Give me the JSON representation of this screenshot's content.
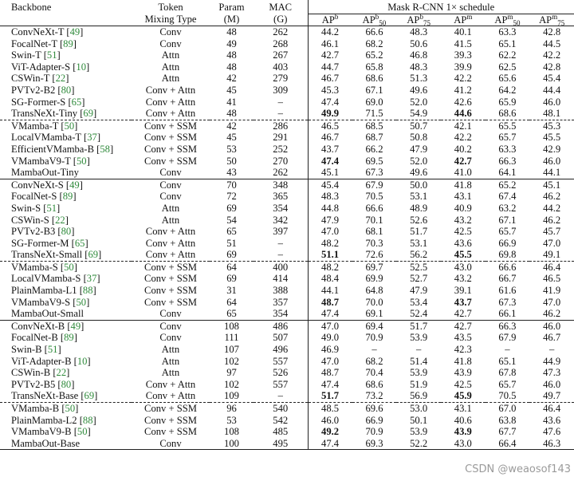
{
  "header": {
    "backbone": "Backbone",
    "token_mixing_line1": "Token",
    "token_mixing_line2": "Mixing Type",
    "param_line1": "Param",
    "param_line2": "(M)",
    "mac_line1": "MAC",
    "mac_line2": "(G)",
    "mask_title": "Mask R-CNN 1× schedule",
    "metrics": [
      {
        "base": "AP",
        "sup": "b",
        "sub": ""
      },
      {
        "base": "AP",
        "sup": "b",
        "sub": "50"
      },
      {
        "base": "AP",
        "sup": "b",
        "sub": "75"
      },
      {
        "base": "AP",
        "sup": "m",
        "sub": ""
      },
      {
        "base": "AP",
        "sup": "m",
        "sub": "50"
      },
      {
        "base": "AP",
        "sup": "m",
        "sub": "75"
      }
    ]
  },
  "rows": [
    {
      "name": "ConvNeXt-T",
      "cite": "49",
      "mix": "Conv",
      "param": "48",
      "mac": "262",
      "v": [
        "44.2",
        "66.6",
        "48.3",
        "40.1",
        "63.3",
        "42.8"
      ],
      "border": "none"
    },
    {
      "name": "FocalNet-T",
      "cite": "89",
      "mix": "Conv",
      "param": "49",
      "mac": "268",
      "v": [
        "46.1",
        "68.2",
        "50.6",
        "41.5",
        "65.1",
        "44.5"
      ],
      "border": "none"
    },
    {
      "name": "Swin-T",
      "cite": "51",
      "mix": "Attn",
      "param": "48",
      "mac": "267",
      "v": [
        "42.7",
        "65.2",
        "46.8",
        "39.3",
        "62.2",
        "42.2"
      ],
      "border": "none"
    },
    {
      "name": "ViT-Adapter-S",
      "cite": "10",
      "mix": "Attn",
      "param": "48",
      "mac": "403",
      "v": [
        "44.7",
        "65.8",
        "48.3",
        "39.9",
        "62.5",
        "42.8"
      ],
      "border": "none"
    },
    {
      "name": "CSWin-T",
      "cite": "22",
      "mix": "Attn",
      "param": "42",
      "mac": "279",
      "v": [
        "46.7",
        "68.6",
        "51.3",
        "42.2",
        "65.6",
        "45.4"
      ],
      "border": "none"
    },
    {
      "name": "PVTv2-B2",
      "cite": "80",
      "mix": "Conv + Attn",
      "param": "45",
      "mac": "309",
      "v": [
        "45.3",
        "67.1",
        "49.6",
        "41.2",
        "64.2",
        "44.4"
      ],
      "border": "none"
    },
    {
      "name": "SG-Former-S",
      "cite": "65",
      "mix": "Conv + Attn",
      "param": "41",
      "mac": "–",
      "v": [
        "47.4",
        "69.0",
        "52.0",
        "42.6",
        "65.9",
        "46.0"
      ],
      "border": "none"
    },
    {
      "name": "TransNeXt-Tiny",
      "cite": "69",
      "mix": "Conv + Attn",
      "param": "48",
      "mac": "–",
      "v": [
        "49.9",
        "71.5",
        "54.9",
        "44.6",
        "68.6",
        "48.1"
      ],
      "bold": [
        0,
        3
      ],
      "border": "none"
    },
    {
      "name": "VMamba-T",
      "cite": "50",
      "mix": "Conv + SSM",
      "param": "42",
      "mac": "286",
      "v": [
        "46.5",
        "68.5",
        "50.7",
        "42.1",
        "65.5",
        "45.3"
      ],
      "border": "dash"
    },
    {
      "name": "LocalVMamba-T",
      "cite": "37",
      "mix": "Conv + SSM",
      "param": "45",
      "mac": "291",
      "v": [
        "46.7",
        "68.7",
        "50.8",
        "42.2",
        "65.7",
        "45.5"
      ],
      "border": "none"
    },
    {
      "name": "EfficientVMamba-B",
      "cite": "58",
      "mix": "Conv + SSM",
      "param": "53",
      "mac": "252",
      "v": [
        "43.7",
        "66.2",
        "47.9",
        "40.2",
        "63.3",
        "42.9"
      ],
      "border": "none"
    },
    {
      "name": "VMambaV9-T",
      "cite": "50",
      "mix": "Conv + SSM",
      "param": "50",
      "mac": "270",
      "v": [
        "47.4",
        "69.5",
        "52.0",
        "42.7",
        "66.3",
        "46.0"
      ],
      "bold": [
        0,
        3
      ],
      "border": "none"
    },
    {
      "name": "MambaOut-Tiny",
      "cite": "",
      "mix": "Conv",
      "param": "43",
      "mac": "262",
      "v": [
        "45.1",
        "67.3",
        "49.6",
        "41.0",
        "64.1",
        "44.1"
      ],
      "border": "none"
    },
    {
      "name": "ConvNeXt-S",
      "cite": "49",
      "mix": "Conv",
      "param": "70",
      "mac": "348",
      "v": [
        "45.4",
        "67.9",
        "50.0",
        "41.8",
        "65.2",
        "45.1"
      ],
      "border": "solid"
    },
    {
      "name": "FocalNet-S",
      "cite": "89",
      "mix": "Conv",
      "param": "72",
      "mac": "365",
      "v": [
        "48.3",
        "70.5",
        "53.1",
        "43.1",
        "67.4",
        "46.2"
      ],
      "border": "none"
    },
    {
      "name": "Swin-S",
      "cite": "51",
      "mix": "Attn",
      "param": "69",
      "mac": "354",
      "v": [
        "44.8",
        "66.6",
        "48.9",
        "40.9",
        "63.2",
        "44.2"
      ],
      "border": "none"
    },
    {
      "name": "CSWin-S",
      "cite": "22",
      "mix": "Attn",
      "param": "54",
      "mac": "342",
      "v": [
        "47.9",
        "70.1",
        "52.6",
        "43.2",
        "67.1",
        "46.2"
      ],
      "border": "none"
    },
    {
      "name": "PVTv2-B3",
      "cite": "80",
      "mix": "Conv + Attn",
      "param": "65",
      "mac": "397",
      "v": [
        "47.0",
        "68.1",
        "51.7",
        "42.5",
        "65.7",
        "45.7"
      ],
      "border": "none"
    },
    {
      "name": "SG-Former-M",
      "cite": "65",
      "mix": "Conv + Attn",
      "param": "51",
      "mac": "–",
      "v": [
        "48.2",
        "70.3",
        "53.1",
        "43.6",
        "66.9",
        "47.0"
      ],
      "border": "none"
    },
    {
      "name": "TransNeXt-Small",
      "cite": "69",
      "mix": "Conv + Attn",
      "param": "69",
      "mac": "–",
      "v": [
        "51.1",
        "72.6",
        "56.2",
        "45.5",
        "69.8",
        "49.1"
      ],
      "bold": [
        0,
        3
      ],
      "border": "none"
    },
    {
      "name": "VMamba-S",
      "cite": "50",
      "mix": "Conv + SSM",
      "param": "64",
      "mac": "400",
      "v": [
        "48.2",
        "69.7",
        "52.5",
        "43.0",
        "66.6",
        "46.4"
      ],
      "border": "dash"
    },
    {
      "name": "LocalVMamba-S",
      "cite": "37",
      "mix": "Conv + SSM",
      "param": "69",
      "mac": "414",
      "v": [
        "48.4",
        "69.9",
        "52.7",
        "43.2",
        "66.7",
        "46.5"
      ],
      "border": "none"
    },
    {
      "name": "PlainMamba-L1",
      "cite": "88",
      "mix": "Conv + SSM",
      "param": "31",
      "mac": "388",
      "v": [
        "44.1",
        "64.8",
        "47.9",
        "39.1",
        "61.6",
        "41.9"
      ],
      "border": "none"
    },
    {
      "name": "VMambaV9-S",
      "cite": "50",
      "mix": "Conv + SSM",
      "param": "64",
      "mac": "357",
      "v": [
        "48.7",
        "70.0",
        "53.4",
        "43.7",
        "67.3",
        "47.0"
      ],
      "bold": [
        0,
        3
      ],
      "border": "none"
    },
    {
      "name": "MambaOut-Small",
      "cite": "",
      "mix": "Conv",
      "param": "65",
      "mac": "354",
      "v": [
        "47.4",
        "69.1",
        "52.4",
        "42.7",
        "66.1",
        "46.2"
      ],
      "border": "none"
    },
    {
      "name": "ConvNeXt-B",
      "cite": "49",
      "mix": "Conv",
      "param": "108",
      "mac": "486",
      "v": [
        "47.0",
        "69.4",
        "51.7",
        "42.7",
        "66.3",
        "46.0"
      ],
      "border": "solid"
    },
    {
      "name": "FocalNet-B",
      "cite": "89",
      "mix": "Conv",
      "param": "111",
      "mac": "507",
      "v": [
        "49.0",
        "70.9",
        "53.9",
        "43.5",
        "67.9",
        "46.7"
      ],
      "border": "none"
    },
    {
      "name": "Swin-B",
      "cite": "51",
      "mix": "Attn",
      "param": "107",
      "mac": "496",
      "v": [
        "46.9",
        "–",
        "–",
        "42.3",
        "–",
        "–"
      ],
      "border": "none"
    },
    {
      "name": "ViT-Adapter-B",
      "cite": "10",
      "mix": "Attn",
      "param": "102",
      "mac": "557",
      "v": [
        "47.0",
        "68.2",
        "51.4",
        "41.8",
        "65.1",
        "44.9"
      ],
      "border": "none"
    },
    {
      "name": "CSWin-B",
      "cite": "22",
      "mix": "Attn",
      "param": "97",
      "mac": "526",
      "v": [
        "48.7",
        "70.4",
        "53.9",
        "43.9",
        "67.8",
        "47.3"
      ],
      "border": "none"
    },
    {
      "name": "PVTv2-B5",
      "cite": "80",
      "mix": "Conv + Attn",
      "param": "102",
      "mac": "557",
      "v": [
        "47.4",
        "68.6",
        "51.9",
        "42.5",
        "65.7",
        "46.0"
      ],
      "border": "none"
    },
    {
      "name": "TransNeXt-Base",
      "cite": "69",
      "mix": "Conv + Attn",
      "param": "109",
      "mac": "–",
      "v": [
        "51.7",
        "73.2",
        "56.9",
        "45.9",
        "70.5",
        "49.7"
      ],
      "bold": [
        0,
        3
      ],
      "border": "none"
    },
    {
      "name": "VMamba-B",
      "cite": "50",
      "mix": "Conv + SSM",
      "param": "96",
      "mac": "540",
      "v": [
        "48.5",
        "69.6",
        "53.0",
        "43.1",
        "67.0",
        "46.4"
      ],
      "border": "dash"
    },
    {
      "name": "PlainMamba-L2",
      "cite": "88",
      "mix": "Conv + SSM",
      "param": "53",
      "mac": "542",
      "v": [
        "46.0",
        "66.9",
        "50.1",
        "40.6",
        "63.8",
        "43.6"
      ],
      "border": "none"
    },
    {
      "name": "VMambaV9-B",
      "cite": "50",
      "mix": "Conv + SSM",
      "param": "108",
      "mac": "485",
      "v": [
        "49.2",
        "70.9",
        "53.9",
        "43.9",
        "67.7",
        "47.6"
      ],
      "bold": [
        0,
        3
      ],
      "border": "none"
    },
    {
      "name": "MambaOut-Base",
      "cite": "",
      "mix": "Conv",
      "param": "100",
      "mac": "495",
      "v": [
        "47.4",
        "69.3",
        "52.2",
        "43.0",
        "66.4",
        "46.3"
      ],
      "border": "none"
    }
  ],
  "watermark": "CSDN @weaosof143"
}
